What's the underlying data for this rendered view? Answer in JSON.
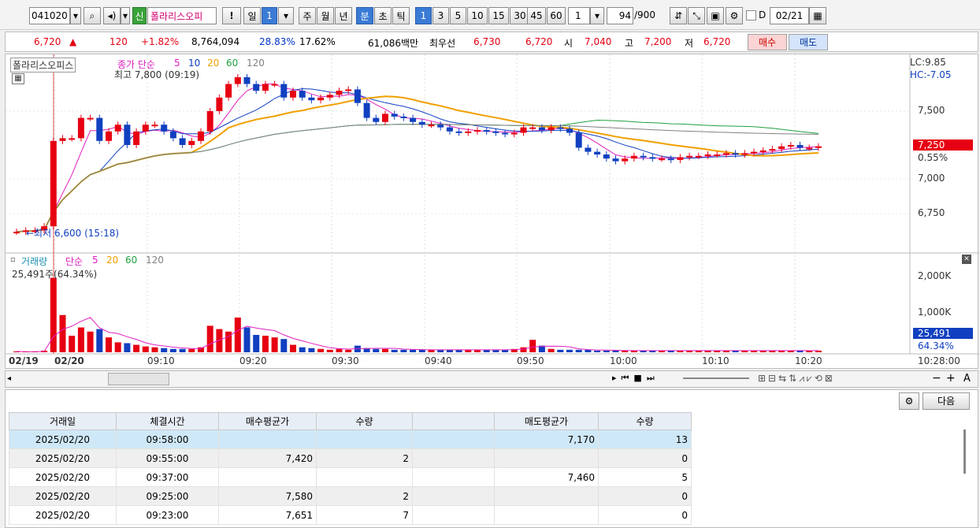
{
  "toolbar": {
    "code": "041020",
    "badge": "신",
    "stock_name": "폴라리스오피",
    "alert": "!",
    "period_day": "일",
    "period_day_value": "1",
    "periods": [
      "주",
      "월",
      "년",
      "분",
      "초",
      "틱"
    ],
    "intervals": [
      "1",
      "3",
      "5",
      "10",
      "15",
      "30",
      "45",
      "60"
    ],
    "interval_value": "1",
    "count": "94",
    "count_total": "/900",
    "date_prefix": "D",
    "date_value": "02/21"
  },
  "quote": {
    "price": "6,720",
    "price_arrow": "▲",
    "change": "120",
    "change_pct": "+1.82%",
    "volume": "8,764,094",
    "turnover_pct": "28.83%",
    "pct2": "17.62%",
    "amount": "61,086백만",
    "best_label": "최우선",
    "best_ask": "6,730",
    "best_bid": "6,720",
    "open_label": "시",
    "open": "7,040",
    "high_label": "고",
    "high": "7,200",
    "low_label": "저",
    "low": "6,720",
    "buy_label": "매수",
    "sell_label": "매도"
  },
  "chart": {
    "stock_label": "폴라리스오피스",
    "ma_legend": "종가 단순",
    "ma_periods": [
      "5",
      "10",
      "20",
      "60",
      "120"
    ],
    "max_annotation": "최고 7,800 (09:19)",
    "min_annotation": "←최저 6,600 (15:18)",
    "lc": "LC:9.85",
    "hc": "HC:-7.05",
    "price_ticks": [
      "7,500",
      "7,000",
      "6,750"
    ],
    "current_price": "7,250",
    "current_pct": "0.55%",
    "volume_legend": "거래량",
    "volume_ma_legend": "단순",
    "volume_ma_periods": [
      "5",
      "20",
      "60",
      "120"
    ],
    "volume_readout": "25,491주(64.34%)",
    "volume_ticks": [
      "2,000K",
      "1,000K"
    ],
    "current_volume": "25,491",
    "current_volume_pct": "64.34%",
    "time_ticks": [
      "02/19",
      "02/20",
      "09:10",
      "09:20",
      "09:30",
      "09:40",
      "09:50",
      "10:00",
      "10:10",
      "10:20",
      "10:28:00"
    ],
    "colors": {
      "up": "#e60012",
      "down": "#1040c0",
      "ma5": "#e020c0",
      "ma10": "#1040c0",
      "ma20": "#f0a000",
      "ma60": "#20a040",
      "ma120": "#808080"
    }
  },
  "grid": {
    "next_label": "다음",
    "headers": [
      "거래일",
      "체결시간",
      "매수평균가",
      "수량",
      "",
      "매도평균가",
      "수량"
    ],
    "rows": [
      [
        "2025/02/20",
        "09:58:00",
        "",
        "",
        "",
        "7,170",
        "13"
      ],
      [
        "2025/02/20",
        "09:55:00",
        "7,420",
        "2",
        "",
        "",
        "0"
      ],
      [
        "2025/02/20",
        "09:37:00",
        "",
        "",
        "",
        "7,460",
        "5"
      ],
      [
        "2025/02/20",
        "09:25:00",
        "7,580",
        "2",
        "",
        "",
        "0"
      ],
      [
        "2025/02/20",
        "09:23:00",
        "7,651",
        "7",
        "",
        "",
        "0"
      ]
    ]
  }
}
